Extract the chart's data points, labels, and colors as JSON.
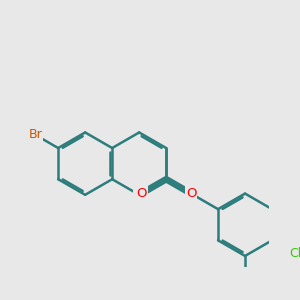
{
  "bg_color": "#e8e8e8",
  "bond_color": "#2d7d7d",
  "bond_width": 1.8,
  "atom_colors": {
    "Br": "#cc5500",
    "O": "#ff0000",
    "Cl": "#33cc00",
    "C": "#2d7d7d"
  },
  "BL": 1.35
}
